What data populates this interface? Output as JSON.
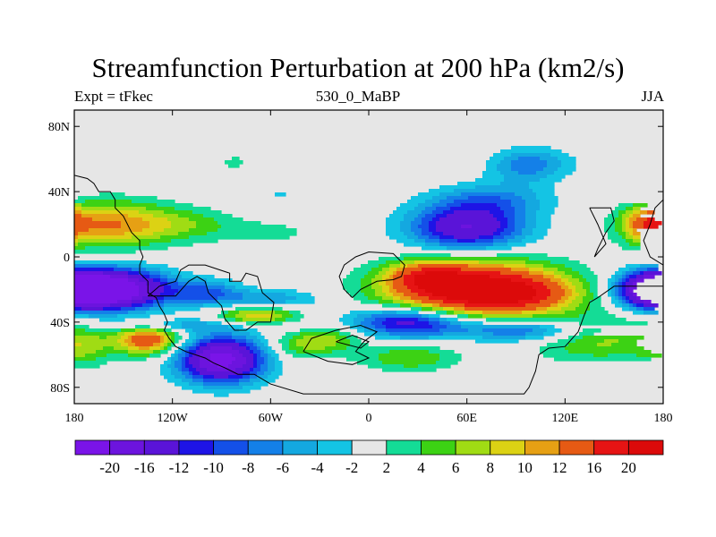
{
  "chart_data": {
    "type": "heatmap",
    "subtype": "filled-contour map",
    "title": "Streamfunction Perturbation at 200 hPa (km2/s)",
    "left_string": "Expt = tFkec",
    "center_string": "530_0_MaBP",
    "right_string": "JJA",
    "x_ticks": [
      "180",
      "120W",
      "60W",
      "0",
      "60E",
      "120E",
      "180"
    ],
    "x_tick_values": [
      -180,
      -120,
      -60,
      0,
      60,
      120,
      180
    ],
    "y_ticks": [
      "80N",
      "40N",
      "0",
      "40S",
      "80S"
    ],
    "y_tick_values": [
      80,
      40,
      0,
      -40,
      -80
    ],
    "xlim": [
      -180,
      180
    ],
    "ylim": [
      -90,
      90
    ],
    "colorbar_labels": [
      "-20",
      "-16",
      "-12",
      "-10",
      "-8",
      "-6",
      "-4",
      "-2",
      "2",
      "4",
      "6",
      "8",
      "10",
      "12",
      "16",
      "20"
    ],
    "colorbar_colors": [
      "#7a14e8",
      "#6c14de",
      "#5a14d8",
      "#1e14e6",
      "#1450e8",
      "#1480e8",
      "#14a8e0",
      "#14c4e4",
      "#e6e6e6",
      "#14dc96",
      "#3cd214",
      "#a0dc14",
      "#dcd214",
      "#e6a014",
      "#e65a14",
      "#e61414",
      "#dc0a0a"
    ],
    "background_color": "#e6e6e6",
    "features": [
      {
        "lon": 65,
        "lat": -20,
        "amp": 24,
        "lon_width": 52,
        "lat_width": 17
      },
      {
        "lon": 100,
        "lat": -23,
        "amp": 6,
        "lon_width": 30,
        "lat_width": 10
      },
      {
        "lon": 35,
        "lat": -12,
        "amp": 9,
        "lon_width": 22,
        "lat_width": 9
      },
      {
        "lon": 60,
        "lat": 18,
        "amp": -16,
        "lon_width": 35,
        "lat_width": 14
      },
      {
        "lon": 95,
        "lat": 55,
        "amp": -5,
        "lon_width": 22,
        "lat_width": 11
      },
      {
        "lon": 75,
        "lat": 35,
        "amp": -6,
        "lon_width": 35,
        "lat_width": 10
      },
      {
        "lon": -152,
        "lat": -20,
        "amp": -22,
        "lon_width": 30,
        "lat_width": 12
      },
      {
        "lon": -100,
        "lat": -22,
        "amp": -8,
        "lon_width": 22,
        "lat_width": 8
      },
      {
        "lon": -172,
        "lat": -20,
        "amp": -16,
        "lon_width": 20,
        "lat_width": 11
      },
      {
        "lon": -118,
        "lat": -42,
        "amp": -5,
        "lon_width": 40,
        "lat_width": 4
      },
      {
        "lon": -60,
        "lat": -26,
        "amp": -6,
        "lon_width": 30,
        "lat_width": 6
      },
      {
        "lon": -60,
        "lat": -42,
        "amp": -4,
        "lon_width": 30,
        "lat_width": 5
      },
      {
        "lon": 25,
        "lat": -40,
        "amp": -15,
        "lon_width": 36,
        "lat_width": 9
      },
      {
        "lon": 95,
        "lat": -45,
        "amp": -10,
        "lon_width": 40,
        "lat_width": 7
      },
      {
        "lon": 140,
        "lat": -50,
        "amp": 7,
        "lon_width": 40,
        "lat_width": 14
      },
      {
        "lon": -90,
        "lat": -63,
        "amp": -22,
        "lon_width": 26,
        "lat_width": 14
      },
      {
        "lon": -135,
        "lat": -51,
        "amp": 15,
        "lon_width": 20,
        "lat_width": 9
      },
      {
        "lon": -175,
        "lat": -55,
        "amp": 6,
        "lon_width": 18,
        "lat_width": 12
      },
      {
        "lon": -160,
        "lat": 20,
        "amp": 12,
        "lon_width": 40,
        "lat_width": 14
      },
      {
        "lon": -110,
        "lat": 20,
        "amp": 4,
        "lon_width": 30,
        "lat_width": 10
      },
      {
        "lon": -60,
        "lat": 15,
        "amp": 2.6,
        "lon_width": 30,
        "lat_width": 8
      },
      {
        "lon": -68,
        "lat": -37,
        "amp": 11,
        "lon_width": 24,
        "lat_width": 7
      },
      {
        "lon": -25,
        "lat": -50,
        "amp": 7,
        "lon_width": 22,
        "lat_width": 9
      },
      {
        "lon": 25,
        "lat": -62,
        "amp": 6,
        "lon_width": 30,
        "lat_width": 8
      },
      {
        "lon": -45,
        "lat": -55,
        "amp": 4,
        "lon_width": 18,
        "lat_width": 8
      },
      {
        "lon": -82,
        "lat": 58,
        "amp": 3,
        "lon_width": 9,
        "lat_width": 4
      },
      {
        "lon": -55,
        "lat": 38,
        "amp": -2.6,
        "lon_width": 7,
        "lat_width": 3
      },
      {
        "lon": 105,
        "lat": 58,
        "amp": -3,
        "lon_width": 25,
        "lat_width": 9
      },
      {
        "lon": 170,
        "lat": 20,
        "amp": 10,
        "lon_width": 14,
        "lat_width": 12
      },
      {
        "lon": 170,
        "lat": 38,
        "amp": -3,
        "lon_width": 15,
        "lat_width": 6
      },
      {
        "lon": 170,
        "lat": -20,
        "amp": -18,
        "lon_width": 20,
        "lat_width": 11
      }
    ],
    "map_outlines": [
      {
        "name": "coast-americas",
        "points": [
          [
            -180,
            50
          ],
          [
            -172,
            48
          ],
          [
            -168,
            45
          ],
          [
            -165,
            40
          ],
          [
            -158,
            40
          ],
          [
            -155,
            35
          ],
          [
            -155,
            30
          ],
          [
            -150,
            25
          ],
          [
            -145,
            15
          ],
          [
            -140,
            10
          ],
          [
            -140,
            5
          ],
          [
            -138,
            0
          ],
          [
            -140,
            -5
          ],
          [
            -140,
            -10
          ],
          [
            -135,
            -15
          ],
          [
            -135,
            -22
          ],
          [
            -130,
            -25
          ],
          [
            -128,
            -30
          ],
          [
            -125,
            -35
          ],
          [
            -123,
            -40
          ],
          [
            -125,
            -45
          ],
          [
            -122,
            -50
          ],
          [
            -118,
            -55
          ],
          [
            -112,
            -58
          ],
          [
            -100,
            -62
          ],
          [
            -95,
            -65
          ],
          [
            -88,
            -68
          ],
          [
            -80,
            -72
          ],
          [
            -70,
            -72
          ],
          [
            -60,
            -78
          ],
          [
            -40,
            -84
          ],
          [
            0,
            -84
          ],
          [
            60,
            -84
          ],
          [
            95,
            -84
          ],
          [
            98,
            -80
          ],
          [
            102,
            -70
          ],
          [
            104,
            -60
          ],
          [
            110,
            -56
          ],
          [
            120,
            -55
          ],
          [
            128,
            -46
          ],
          [
            132,
            -35
          ],
          [
            135,
            -28
          ],
          [
            140,
            -25
          ],
          [
            150,
            -18
          ],
          [
            160,
            -18
          ],
          [
            175,
            -18
          ],
          [
            180,
            -18
          ]
        ]
      },
      {
        "name": "coast-north-america",
        "points": [
          [
            -135,
            -24
          ],
          [
            -118,
            -24
          ],
          [
            -110,
            -15
          ],
          [
            -105,
            -12
          ],
          [
            -100,
            -15
          ],
          [
            -98,
            -22
          ],
          [
            -90,
            -30
          ],
          [
            -88,
            -38
          ],
          [
            -82,
            -45
          ],
          [
            -75,
            -45
          ],
          [
            -68,
            -40
          ],
          [
            -60,
            -40
          ],
          [
            -58,
            -28
          ],
          [
            -65,
            -22
          ],
          [
            -68,
            -12
          ],
          [
            -75,
            -10
          ],
          [
            -78,
            -15
          ],
          [
            -85,
            -15
          ],
          [
            -85,
            -10
          ],
          [
            -100,
            -5
          ],
          [
            -110,
            -5
          ],
          [
            -115,
            -8
          ],
          [
            -118,
            -15
          ],
          [
            -128,
            -18
          ],
          [
            -135,
            -24
          ]
        ]
      },
      {
        "name": "coast-europe",
        "points": [
          [
            -10,
            -25
          ],
          [
            -5,
            -20
          ],
          [
            5,
            -15
          ],
          [
            15,
            -14
          ],
          [
            20,
            -12
          ],
          [
            22,
            -5
          ],
          [
            15,
            2
          ],
          [
            0,
            3
          ],
          [
            -8,
            0
          ],
          [
            -15,
            -5
          ],
          [
            -18,
            -12
          ],
          [
            -15,
            -20
          ],
          [
            -10,
            -25
          ]
        ]
      },
      {
        "name": "coast-africa",
        "points": [
          [
            -40,
            -58
          ],
          [
            -35,
            -50
          ],
          [
            -20,
            -45
          ],
          [
            -5,
            -42
          ],
          [
            5,
            -46
          ],
          [
            -3,
            -52
          ],
          [
            -8,
            -58
          ],
          [
            0,
            -62
          ],
          [
            -10,
            -66
          ],
          [
            -25,
            -64
          ],
          [
            -40,
            -58
          ]
        ]
      },
      {
        "name": "coast-africa-inner",
        "points": [
          [
            -20,
            -52
          ],
          [
            -10,
            -48
          ],
          [
            0,
            -52
          ],
          [
            -5,
            -56
          ],
          [
            -20,
            -52
          ]
        ]
      },
      {
        "name": "coast-asia-east",
        "points": [
          [
            135,
            30
          ],
          [
            148,
            30
          ],
          [
            150,
            22
          ],
          [
            145,
            15
          ],
          [
            140,
            5
          ],
          [
            138,
            0
          ],
          [
            145,
            8
          ],
          [
            140,
            20
          ],
          [
            135,
            30
          ]
        ]
      },
      {
        "name": "coast-east-edge",
        "points": [
          [
            180,
            35
          ],
          [
            175,
            30
          ],
          [
            172,
            20
          ],
          [
            168,
            10
          ],
          [
            172,
            0
          ],
          [
            180,
            -5
          ]
        ]
      }
    ],
    "colorbar_placement": "bottom"
  }
}
